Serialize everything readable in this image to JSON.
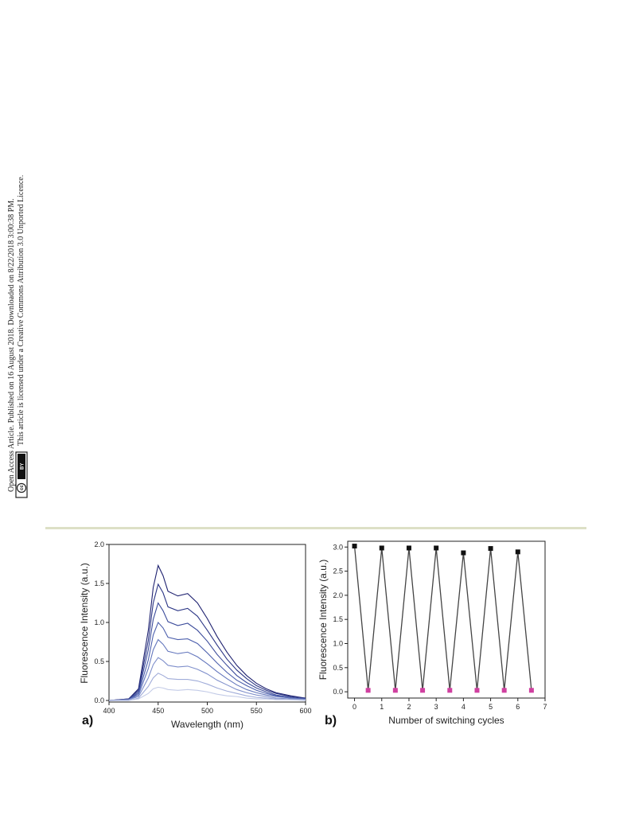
{
  "sidebar": {
    "line1": "Open Access Article. Published on 16 August 2018. Downloaded on 8/22/2018 3:00:38 PM.",
    "line2": "This article is licensed under a Creative Commons Attribution 3.0 Unported Licence.",
    "badge_left": "cc",
    "badge_right": "BY"
  },
  "chart_data": [
    {
      "type": "line",
      "panel": "a)",
      "xlabel": "Wavelength (nm)",
      "ylabel": "Fluorescence Intensity (a.u.)",
      "x": [
        400,
        420,
        430,
        440,
        445,
        450,
        455,
        460,
        470,
        480,
        490,
        500,
        510,
        520,
        530,
        540,
        550,
        560,
        570,
        585,
        600
      ],
      "series": [
        {
          "color": "#1f2270",
          "values": [
            0,
            0.02,
            0.15,
            0.9,
            1.45,
            1.73,
            1.6,
            1.4,
            1.34,
            1.37,
            1.25,
            1.05,
            0.82,
            0.62,
            0.45,
            0.32,
            0.22,
            0.15,
            0.1,
            0.06,
            0.03
          ]
        },
        {
          "color": "#2b3585",
          "values": [
            0,
            0.02,
            0.13,
            0.77,
            1.25,
            1.49,
            1.38,
            1.2,
            1.15,
            1.18,
            1.08,
            0.9,
            0.71,
            0.53,
            0.39,
            0.28,
            0.19,
            0.13,
            0.09,
            0.05,
            0.03
          ]
        },
        {
          "color": "#3a4a9a",
          "values": [
            0,
            0.01,
            0.11,
            0.65,
            1.04,
            1.25,
            1.15,
            1.01,
            0.96,
            0.99,
            0.9,
            0.76,
            0.59,
            0.45,
            0.32,
            0.23,
            0.16,
            0.11,
            0.07,
            0.04,
            0.02
          ]
        },
        {
          "color": "#4d60ad",
          "values": [
            0,
            0.01,
            0.09,
            0.52,
            0.84,
            1.0,
            0.93,
            0.81,
            0.78,
            0.79,
            0.73,
            0.61,
            0.48,
            0.36,
            0.26,
            0.19,
            0.13,
            0.09,
            0.06,
            0.03,
            0.02
          ]
        },
        {
          "color": "#6477bd",
          "values": [
            0,
            0.01,
            0.07,
            0.41,
            0.65,
            0.78,
            0.72,
            0.63,
            0.6,
            0.62,
            0.56,
            0.47,
            0.37,
            0.28,
            0.2,
            0.14,
            0.1,
            0.07,
            0.05,
            0.03,
            0.01
          ]
        },
        {
          "color": "#7f8fcb",
          "values": [
            0,
            0.01,
            0.05,
            0.29,
            0.46,
            0.55,
            0.51,
            0.45,
            0.43,
            0.44,
            0.4,
            0.34,
            0.26,
            0.2,
            0.14,
            0.1,
            0.07,
            0.05,
            0.03,
            0.02,
            0.01
          ]
        },
        {
          "color": "#a0acd9",
          "values": [
            0,
            0,
            0.03,
            0.18,
            0.29,
            0.35,
            0.32,
            0.28,
            0.27,
            0.27,
            0.25,
            0.21,
            0.16,
            0.12,
            0.09,
            0.06,
            0.04,
            0.03,
            0.02,
            0.01,
            0.01
          ]
        },
        {
          "color": "#c3cbe7",
          "values": [
            0,
            0,
            0.02,
            0.09,
            0.15,
            0.17,
            0.16,
            0.14,
            0.13,
            0.14,
            0.13,
            0.11,
            0.08,
            0.06,
            0.05,
            0.03,
            0.02,
            0.02,
            0.01,
            0.01,
            0
          ]
        }
      ],
      "xlim": [
        400,
        600
      ],
      "xticks": [
        400,
        450,
        500,
        550,
        600
      ],
      "ylim": [
        -0.02,
        2
      ],
      "yticks": [
        {
          "value": 0,
          "label": "0.0"
        },
        {
          "value": 0.5,
          "label": "0.5"
        },
        {
          "value": 1,
          "label": "1.0"
        },
        {
          "value": 1.5,
          "label": "1.5"
        },
        {
          "value": 2,
          "label": "2.0"
        }
      ]
    },
    {
      "type": "line",
      "panel": "b)",
      "xlabel": "Number of switching cycles",
      "ylabel": "Fluorescence Intensity (a.u.)",
      "x": [
        0,
        0.5,
        1,
        1.5,
        2,
        2.5,
        3,
        3.5,
        4,
        4.5,
        5,
        5.5,
        6,
        6.5
      ],
      "series": [
        {
          "color": "#444444",
          "values": [
            3.02,
            0.03,
            2.98,
            0.03,
            2.98,
            0.03,
            2.98,
            0.03,
            2.88,
            0.03,
            2.97,
            0.03,
            2.9,
            0.03
          ]
        }
      ],
      "point_colors": [
        "#111111",
        "#d040a0",
        "#111111",
        "#d040a0",
        "#111111",
        "#d040a0",
        "#111111",
        "#d040a0",
        "#111111",
        "#d040a0",
        "#111111",
        "#d040a0",
        "#111111",
        "#d040a0"
      ],
      "xlim": [
        -0.25,
        7
      ],
      "xticks": [
        0,
        1,
        2,
        3,
        4,
        5,
        6,
        7
      ],
      "ylim": [
        -0.13,
        3.12
      ],
      "yticks": [
        {
          "value": 0,
          "label": "0.0"
        },
        {
          "value": 0.5,
          "label": "0.5"
        },
        {
          "value": 1,
          "label": "1.0"
        },
        {
          "value": 1.5,
          "label": "1.5"
        },
        {
          "value": 2,
          "label": "2.0"
        },
        {
          "value": 2.5,
          "label": "2.5"
        },
        {
          "value": 3,
          "label": "3.0"
        }
      ]
    }
  ]
}
